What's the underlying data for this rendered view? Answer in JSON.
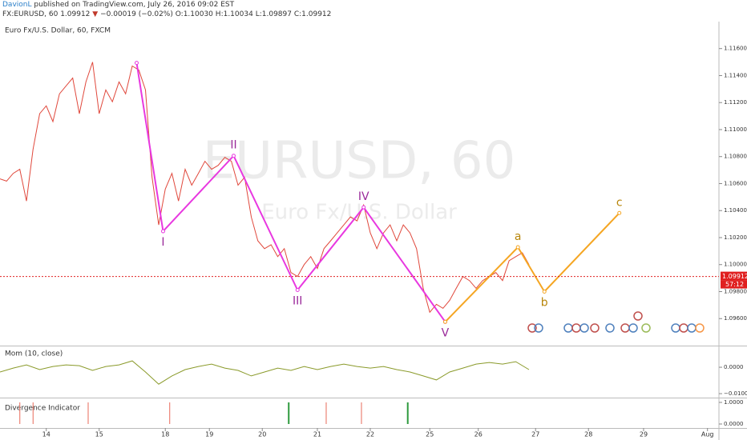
{
  "header": {
    "author": "DavionL",
    "published": "published on TradingView.com, July 26, 2016 09:02 EST",
    "symbol": "FX:EURUSD, 60",
    "price": "1.09912",
    "arrow": "▼",
    "change": "−0.00019 (−0.02%)",
    "open": "O:1.10030",
    "high": "H:1.10034",
    "low": "L:1.09897",
    "close": "C:1.09912"
  },
  "chart_data": [
    {
      "type": "line",
      "title": "Euro Fx/U.S. Dollar, 60, FXCM",
      "watermark": "EURUSD, 60",
      "watermark_subtitle": "Euro Fx/U.S. Dollar",
      "xlim": [
        0,
        326.2
      ],
      "ylim": [
        1.094,
        1.11782
      ],
      "xticks": [
        {
          "value": 21,
          "label": "14"
        },
        {
          "value": 45,
          "label": "15"
        },
        {
          "value": 75,
          "label": "18"
        },
        {
          "value": 95,
          "label": "19"
        },
        {
          "value": 119,
          "label": "20"
        },
        {
          "value": 144,
          "label": "21"
        },
        {
          "value": 168,
          "label": "22"
        },
        {
          "value": 195,
          "label": "25"
        },
        {
          "value": 217,
          "label": "26"
        },
        {
          "value": 243,
          "label": "27"
        },
        {
          "value": 267,
          "label": "28"
        },
        {
          "value": 292,
          "label": "29"
        },
        {
          "value": 321,
          "label": "Aug"
        }
      ],
      "yticks": [
        {
          "value": 1.116,
          "label": "1.11600"
        },
        {
          "value": 1.114,
          "label": "1.11400"
        },
        {
          "value": 1.112,
          "label": "1.11200"
        },
        {
          "value": 1.11,
          "label": "1.11000"
        },
        {
          "value": 1.108,
          "label": "1.10800"
        },
        {
          "value": 1.106,
          "label": "1.10600"
        },
        {
          "value": 1.104,
          "label": "1.10400"
        },
        {
          "value": 1.102,
          "label": "1.10200"
        },
        {
          "value": 1.1,
          "label": "1.10000"
        },
        {
          "value": 1.098,
          "label": "1.09800"
        },
        {
          "value": 1.096,
          "label": "1.09600"
        }
      ],
      "series": [
        {
          "color": "#e0483c",
          "x": [
            0,
            3,
            6,
            9,
            12,
            15,
            18,
            21,
            24,
            27,
            30,
            33,
            36,
            39,
            42,
            45,
            48,
            51,
            54,
            57,
            60,
            63,
            66,
            69,
            72,
            75,
            78,
            81,
            84,
            87,
            90,
            93,
            96,
            99,
            102,
            105,
            108,
            111,
            114,
            117,
            120,
            123,
            126,
            129,
            132,
            135,
            138,
            141,
            144,
            147,
            150,
            153,
            156,
            159,
            162,
            165,
            168,
            171,
            174,
            177,
            180,
            183,
            186,
            189,
            192,
            195,
            198,
            201,
            204,
            207,
            210,
            213,
            216,
            219,
            222,
            225,
            228,
            231,
            234,
            237,
            240
          ],
          "values": [
            1.10635,
            1.10618,
            1.10676,
            1.10706,
            1.10471,
            1.10853,
            1.11118,
            1.11176,
            1.11059,
            1.11265,
            1.11324,
            1.11382,
            1.11118,
            1.11353,
            1.115,
            1.11118,
            1.11294,
            1.11206,
            1.11353,
            1.11265,
            1.11471,
            1.11441,
            1.11294,
            1.10647,
            1.10294,
            1.10559,
            1.10676,
            1.10471,
            1.10706,
            1.10588,
            1.10676,
            1.10765,
            1.10706,
            1.10735,
            1.10794,
            1.10765,
            1.10588,
            1.10647,
            1.10353,
            1.10176,
            1.10118,
            1.10147,
            1.10059,
            1.10118,
            1.09941,
            1.09912,
            1.1,
            1.10059,
            1.09971,
            1.10118,
            1.10176,
            1.10235,
            1.10294,
            1.10353,
            1.10324,
            1.10441,
            1.10235,
            1.10118,
            1.10235,
            1.10294,
            1.10176,
            1.10294,
            1.10235,
            1.10118,
            1.09824,
            1.09647,
            1.09706,
            1.09676,
            1.09735,
            1.09824,
            1.09912,
            1.09882,
            1.09824,
            1.09882,
            1.09912,
            1.09941,
            1.09882,
            1.10029,
            1.10059,
            1.10088,
            1.1
          ]
        }
      ],
      "waves": [
        {
          "color": "#e838e0",
          "label_color": "#9a2a9a",
          "x": [
            62,
            74,
            106,
            135,
            165,
            202
          ],
          "values": [
            1.11494,
            1.10247,
            1.10806,
            1.09812,
            1.10424,
            1.09576
          ],
          "labels": [
            null,
            "I",
            "II",
            "III",
            "IV",
            "V"
          ]
        },
        {
          "color": "#f5a623",
          "label_color": "#b8860b",
          "x": [
            202,
            235,
            247,
            281
          ],
          "values": [
            1.09576,
            1.10129,
            1.098,
            1.10382
          ],
          "labels": [
            null,
            "a",
            "b",
            "c"
          ]
        }
      ],
      "last_price": 1.09912,
      "last_price_label": "1.09912",
      "countdown": "57:12",
      "last_price_color": "#e02020"
    },
    {
      "type": "line",
      "title": "Mom (10, close)",
      "xlim": [
        0,
        326.2
      ],
      "ylim": [
        -0.0115,
        0.0079
      ],
      "yticks": [
        {
          "value": 0,
          "label": "0.0000"
        },
        {
          "value": -0.01,
          "label": "−0.0100"
        }
      ],
      "series": [
        {
          "color": "#8a9a2a",
          "x": [
            0,
            6,
            12,
            18,
            24,
            30,
            36,
            42,
            48,
            54,
            60,
            66,
            72,
            78,
            84,
            90,
            96,
            102,
            108,
            114,
            120,
            126,
            132,
            138,
            144,
            150,
            156,
            162,
            168,
            174,
            180,
            186,
            192,
            198,
            204,
            210,
            216,
            222,
            228,
            234,
            240
          ],
          "values": [
            -0.0018,
            -0.0003,
            0.0009,
            -0.0009,
            0.0003,
            0.0009,
            0.0006,
            -0.0012,
            0.0003,
            0.0009,
            0.0024,
            -0.0018,
            -0.0064,
            -0.0033,
            -0.0009,
            0.0003,
            0.0012,
            -0.0003,
            -0.0012,
            -0.0033,
            -0.0018,
            -0.0003,
            -0.0012,
            0.0003,
            -0.0009,
            0.0003,
            0.0012,
            0.0003,
            -0.0003,
            0.0003,
            -0.0009,
            -0.0018,
            -0.0033,
            -0.0048,
            -0.0018,
            -0.0003,
            0.0012,
            0.0018,
            0.0012,
            0.0021,
            -0.0009
          ]
        }
      ]
    },
    {
      "type": "bar",
      "title": "Divergence Indicator",
      "xlim": [
        0,
        326.2
      ],
      "ylim": [
        -0.185,
        1.185
      ],
      "yticks": [
        {
          "value": 1,
          "label": "1.0000"
        },
        {
          "value": 0,
          "label": "0.0000"
        }
      ],
      "series": [
        {
          "color": "#e86a5a",
          "x": [
            9,
            15,
            40,
            77,
            148,
            164
          ],
          "values": [
            1,
            1,
            1,
            1,
            1,
            1
          ]
        },
        {
          "color": "#2e9a3e",
          "x": [
            131,
            185
          ],
          "values": [
            1,
            1
          ]
        }
      ]
    }
  ]
}
